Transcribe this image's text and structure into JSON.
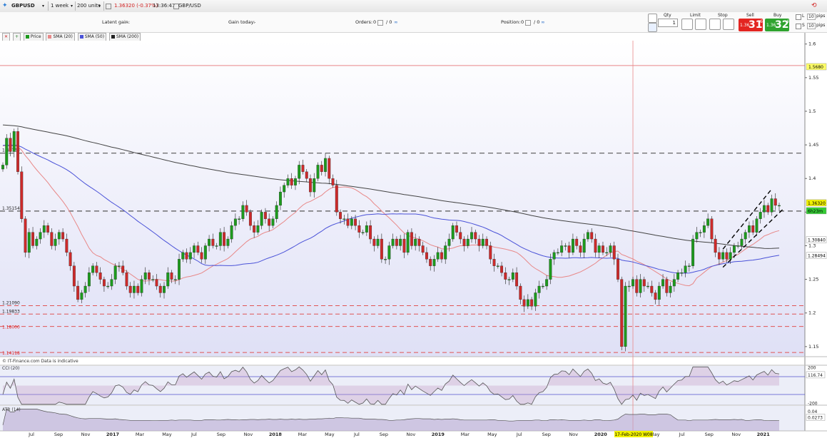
{
  "toolbar": {
    "symbol": "GBPUSD",
    "timeframe": "1 week",
    "units": "200 units",
    "price_change": "1.36320 (-0.37%)",
    "clock": "13:36:47",
    "instrument": "GBP/USD"
  },
  "trade": {
    "latent_gain_label": "Latent gain:",
    "latent_gain_value": "-",
    "gain_today_label": "Gain today:",
    "gain_today_value": "-",
    "orders_label": "Orders:",
    "orders_value": "0",
    "orders_sep": "/ 0",
    "position_label": "Position:",
    "position_value": "0",
    "position_sep": "/ 0",
    "qty_label": "Qty",
    "qty_value": "1",
    "limit_label": "Limit",
    "stop_label": "Stop",
    "sell_label": "Sell",
    "buy_label": "Buy",
    "sell_price_small": "1.36",
    "sell_price_big": "31",
    "sell_price_sup": "6",
    "buy_price_small": "1.36",
    "buy_price_big": "32",
    "buy_price_sup": "4",
    "limit_pips_label": "L",
    "limit_pips_value": "10",
    "stop_pips_label": "S",
    "stop_pips_value": "10",
    "pips_unit": "pips"
  },
  "legend": {
    "plus": "+",
    "price": "Price",
    "sma20": "SMA (20)",
    "sma50": "SMA (50)",
    "sma200": "SMA (200)"
  },
  "colors": {
    "candle_up": "#1d9a1d",
    "candle_down": "#cc2a2a",
    "sma20": "#e88888",
    "sma50": "#4a52d8",
    "sma200": "#444444",
    "cci_line": "#555555",
    "cci_fill_up": "#c79ac7",
    "cci_fill_down": "#8bbf96",
    "atr_fill": "#b7a6cf",
    "channel": "#000000",
    "level_dashed_gray": "#555555",
    "level_dashed_red": "#e05555",
    "vline": "#e88888",
    "axis_label_yellow": "#f2f200",
    "axis_label_green": "#33cc33"
  },
  "footer_note": "© IT-Finance.com  Data is indicative",
  "cci": {
    "label": "CCI (20)",
    "axis_labels": [
      "200",
      "116.74",
      "-200"
    ],
    "current": 116.74
  },
  "atr": {
    "label": "ATR (14)",
    "axis_labels": [
      "0.04",
      "0.0273"
    ],
    "current": 0.0273
  },
  "chart_data": {
    "type": "candlestick",
    "timeframe": "1 week",
    "instrument": "GBP/USD",
    "y_axis_ticks": [
      "1.6",
      "1.55",
      "1.5",
      "1.45",
      "1.4",
      "1.35",
      "1.3",
      "1.25",
      "1.2",
      "1.15"
    ],
    "ylim": [
      1.135,
      1.605
    ],
    "x_ticks": [
      "Jul",
      "Sep",
      "Nov",
      "2017",
      "Mar",
      "May",
      "Jul",
      "Sep",
      "Nov",
      "2018",
      "Mar",
      "May",
      "Jul",
      "Sep",
      "Nov",
      "2019",
      "Mar",
      "May",
      "Jul",
      "Sep",
      "Nov",
      "2020",
      "Mar",
      "May",
      "Jul",
      "Sep",
      "Nov",
      "2021"
    ],
    "crosshair_label": "17-Feb-2020 W08",
    "price_levels": [
      {
        "value": 1.568,
        "label": "1.5680",
        "style": "solid-red"
      },
      {
        "value": 1.43768,
        "label": "1.43768",
        "style": "dashed-gray"
      },
      {
        "value": 1.35154,
        "label": "1.35154",
        "style": "dashed-gray"
      },
      {
        "value": 1.2109,
        "label": "1.21090",
        "style": "dashed-red"
      },
      {
        "value": 1.19833,
        "label": "1.19833",
        "style": "dashed-red"
      },
      {
        "value": 1.18,
        "label": "1.18000",
        "style": "dashed-red"
      },
      {
        "value": 1.14118,
        "label": "1.14118",
        "style": "dashed-red"
      }
    ],
    "right_labels": [
      {
        "value": 1.3632,
        "label": "1.36320",
        "bg": "#f2f200"
      },
      {
        "value": 1.35154,
        "label": "6h23m",
        "bg": "#33cc33"
      },
      {
        "value": 1.3084,
        "label": "1.30840",
        "bg": "#ffffff"
      },
      {
        "value": 1.28494,
        "label": "1.28494",
        "bg": "#ffffff"
      }
    ],
    "series": [
      {
        "name": "Price",
        "type": "candlestick",
        "note": "weekly GBP/USD candles Jun-2016 to Jan-2021"
      },
      {
        "name": "SMA (20)"
      },
      {
        "name": "SMA (50)"
      },
      {
        "name": "SMA (200)"
      }
    ],
    "close_path": [
      1.42,
      1.46,
      1.44,
      1.47,
      1.41,
      1.34,
      1.29,
      1.32,
      1.3,
      1.31,
      1.32,
      1.33,
      1.32,
      1.3,
      1.31,
      1.32,
      1.31,
      1.29,
      1.27,
      1.24,
      1.22,
      1.23,
      1.24,
      1.26,
      1.27,
      1.26,
      1.25,
      1.24,
      1.24,
      1.25,
      1.27,
      1.27,
      1.26,
      1.24,
      1.23,
      1.24,
      1.23,
      1.25,
      1.26,
      1.25,
      1.25,
      1.24,
      1.23,
      1.24,
      1.26,
      1.25,
      1.25,
      1.28,
      1.29,
      1.28,
      1.29,
      1.3,
      1.29,
      1.28,
      1.3,
      1.31,
      1.3,
      1.3,
      1.32,
      1.3,
      1.31,
      1.33,
      1.34,
      1.34,
      1.36,
      1.35,
      1.33,
      1.32,
      1.33,
      1.35,
      1.34,
      1.33,
      1.34,
      1.36,
      1.38,
      1.39,
      1.4,
      1.39,
      1.4,
      1.42,
      1.41,
      1.4,
      1.38,
      1.4,
      1.42,
      1.41,
      1.43,
      1.4,
      1.39,
      1.35,
      1.34,
      1.34,
      1.33,
      1.34,
      1.33,
      1.32,
      1.32,
      1.33,
      1.31,
      1.3,
      1.31,
      1.28,
      1.28,
      1.3,
      1.31,
      1.3,
      1.31,
      1.29,
      1.32,
      1.3,
      1.31,
      1.3,
      1.29,
      1.28,
      1.27,
      1.28,
      1.29,
      1.28,
      1.3,
      1.31,
      1.33,
      1.32,
      1.31,
      1.3,
      1.31,
      1.32,
      1.31,
      1.3,
      1.31,
      1.3,
      1.28,
      1.27,
      1.27,
      1.26,
      1.25,
      1.25,
      1.26,
      1.24,
      1.22,
      1.21,
      1.22,
      1.21,
      1.23,
      1.24,
      1.24,
      1.25,
      1.28,
      1.29,
      1.29,
      1.3,
      1.3,
      1.29,
      1.31,
      1.3,
      1.29,
      1.31,
      1.32,
      1.31,
      1.29,
      1.3,
      1.29,
      1.29,
      1.3,
      1.28,
      1.25,
      1.15,
      1.24,
      1.24,
      1.25,
      1.23,
      1.25,
      1.24,
      1.24,
      1.23,
      1.22,
      1.24,
      1.25,
      1.23,
      1.24,
      1.25,
      1.26,
      1.26,
      1.27,
      1.27,
      1.31,
      1.32,
      1.32,
      1.33,
      1.34,
      1.31,
      1.29,
      1.28,
      1.29,
      1.28,
      1.29,
      1.3,
      1.3,
      1.31,
      1.32,
      1.33,
      1.32,
      1.34,
      1.35,
      1.36,
      1.35,
      1.37,
      1.36,
      1.36
    ]
  }
}
